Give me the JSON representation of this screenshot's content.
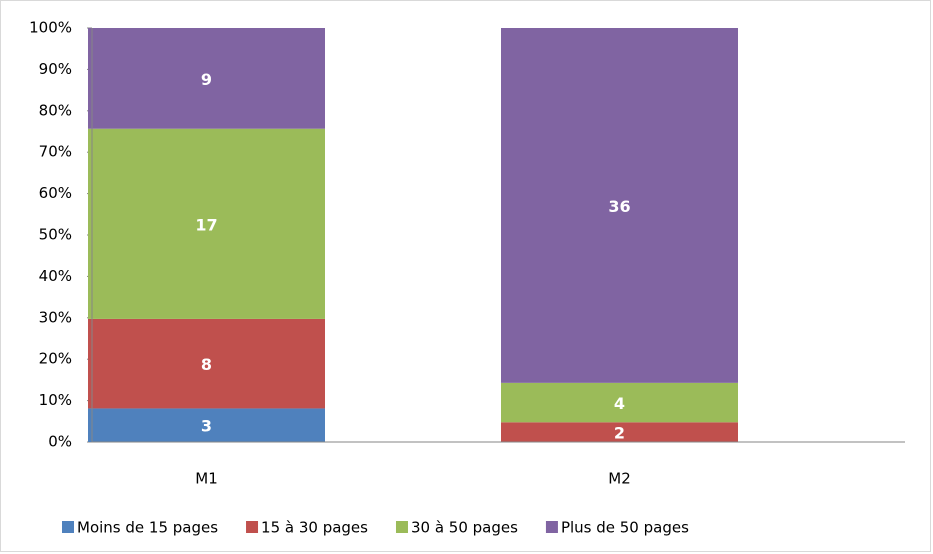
{
  "chart_data": {
    "type": "bar",
    "stacking": "percent",
    "categories": [
      "M1",
      "M2"
    ],
    "series": [
      {
        "name": "Moins de 15 pages",
        "color": "#4f81bd",
        "values": [
          3,
          null
        ]
      },
      {
        "name": "15 à 30 pages",
        "color": "#c0504d",
        "values": [
          8,
          2
        ]
      },
      {
        "name": "30 à 50 pages",
        "color": "#9bbb59",
        "values": [
          17,
          4
        ]
      },
      {
        "name": "Plus de 50 pages",
        "color": "#8064a2",
        "values": [
          9,
          36
        ]
      }
    ],
    "ylim": [
      0,
      100
    ],
    "yticks": [
      {
        "value": 0,
        "label": "0%"
      },
      {
        "value": 10,
        "label": "10%"
      },
      {
        "value": 20,
        "label": "20%"
      },
      {
        "value": 30,
        "label": "30%"
      },
      {
        "value": 40,
        "label": "40%"
      },
      {
        "value": 50,
        "label": "50%"
      },
      {
        "value": 60,
        "label": "60%"
      },
      {
        "value": 70,
        "label": "70%"
      },
      {
        "value": 80,
        "label": "80%"
      },
      {
        "value": 90,
        "label": "90%"
      },
      {
        "value": 100,
        "label": "100%"
      }
    ],
    "grid": false,
    "legend": "bottom"
  }
}
